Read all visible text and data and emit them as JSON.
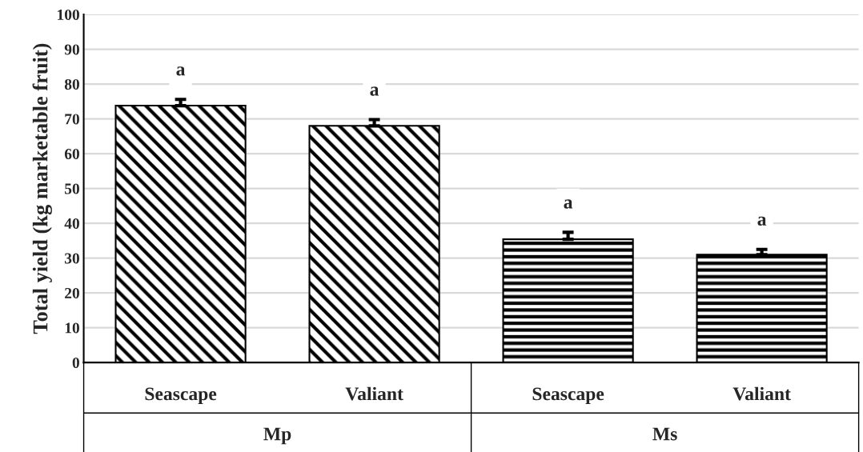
{
  "chart_data": {
    "type": "bar",
    "ylabel": "Total yield (kg marketable fruit)",
    "categories": [
      "Seascape",
      "Valiant",
      "Seascape",
      "Valiant"
    ],
    "values": [
      73.8,
      68.0,
      35.4,
      31.0
    ],
    "errors": [
      1.8,
      1.8,
      2.0,
      1.5
    ],
    "value_labels": [
      "a",
      "a",
      "a",
      "a"
    ],
    "colors": [
      "#000000",
      "#000000",
      "#000000",
      "#000000"
    ],
    "annotations": [
      "Mp",
      "Ms"
    ],
    "ylim": [
      0,
      100
    ],
    "yticks": [
      0,
      10,
      20,
      30,
      40,
      50,
      60,
      70,
      80,
      90,
      100
    ],
    "grid": "y"
  }
}
